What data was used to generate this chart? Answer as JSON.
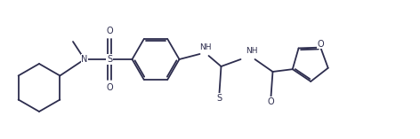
{
  "bg": "#ffffff",
  "lc": "#2d2d4e",
  "lw": 1.3,
  "fs": 7.0,
  "figw": 4.72,
  "figh": 1.57,
  "dpi": 100,
  "xlim": [
    0,
    4.72
  ],
  "ylim": [
    0,
    1.57
  ]
}
